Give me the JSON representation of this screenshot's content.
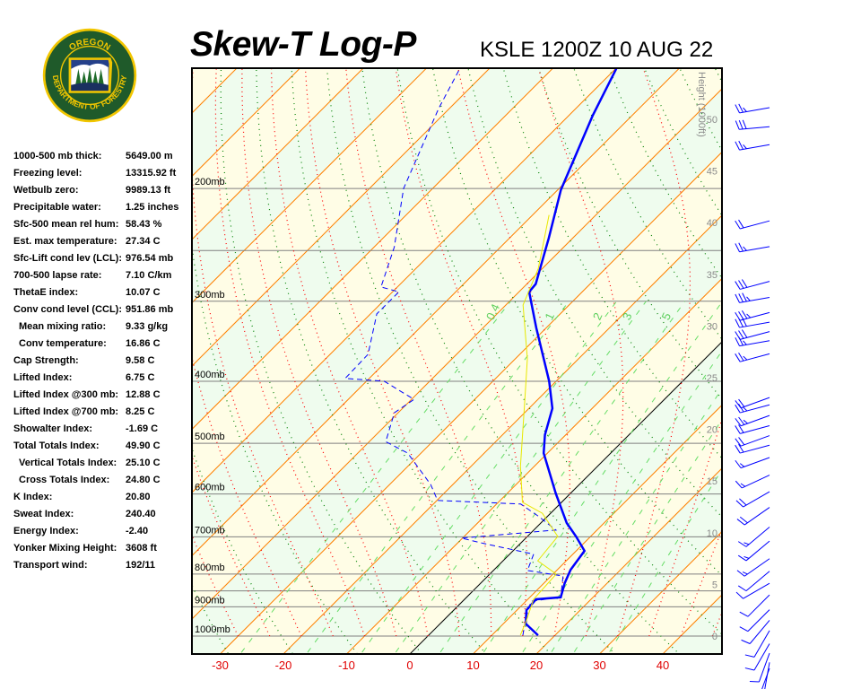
{
  "header": {
    "title": "Skew-T Log-P",
    "station": "KSLE 1200Z 10 AUG 22"
  },
  "logo": {
    "top_text": "OREGON",
    "bottom_text": "DEPARTMENT OF FORESTRY",
    "colors": {
      "green": "#1f5a2a",
      "gold": "#f2c600"
    }
  },
  "stats": [
    {
      "label": "1000-500 mb thick:",
      "value": "5649.00 m"
    },
    {
      "label": "Freezing level:",
      "value": "13315.92 ft"
    },
    {
      "label": "Wetbulb zero:",
      "value": "9989.13 ft"
    },
    {
      "label": "Precipitable water:",
      "value": "1.25 inches"
    },
    {
      "label": "Sfc-500 mean rel hum:",
      "value": "58.43 %"
    },
    {
      "label": "Est. max temperature:",
      "value": "27.34 C"
    },
    {
      "label": "Sfc-Lift cond lev (LCL):",
      "value": "976.54 mb"
    },
    {
      "label": "700-500 lapse rate:",
      "value": "7.10 C/km"
    },
    {
      "label": "ThetaE index:",
      "value": "10.07 C"
    },
    {
      "label": "Conv cond level (CCL):",
      "value": "951.86 mb"
    },
    {
      "label": "Mean mixing ratio:",
      "value": "9.33 g/kg",
      "indent": true
    },
    {
      "label": "Conv temperature:",
      "value": "16.86 C",
      "indent": true
    },
    {
      "label": "Cap Strength:",
      "value": "9.58 C"
    },
    {
      "label": "Lifted Index:",
      "value": "6.75 C"
    },
    {
      "label": "Lifted Index @300 mb:",
      "value": "12.88 C"
    },
    {
      "label": "Lifted Index @700 mb:",
      "value": "8.25 C"
    },
    {
      "label": "Showalter Index:",
      "value": "-1.69 C"
    },
    {
      "label": "Total Totals Index:",
      "value": "49.90 C"
    },
    {
      "label": "Vertical Totals Index:",
      "value": "25.10 C",
      "indent": true
    },
    {
      "label": "Cross Totals Index:",
      "value": "24.80 C",
      "indent": true
    },
    {
      "label": "K Index:",
      "value": "20.80"
    },
    {
      "label": "Sweat Index:",
      "value": "240.40"
    },
    {
      "label": "Energy Index:",
      "value": "-2.40"
    },
    {
      "label": "Yonker Mixing Height:",
      "value": "3608 ft"
    },
    {
      "label": "Transport wind:",
      "value": "192/11"
    }
  ],
  "chart_data": {
    "type": "line",
    "title": "Skew-T Log-P",
    "x_ticks": [
      "-30",
      "-20",
      "-10",
      "0",
      "10",
      "20",
      "30",
      "40"
    ],
    "x_tick_values": [
      -30,
      -20,
      -10,
      0,
      10,
      20,
      30,
      40
    ],
    "pressure_labels": [
      "200mb",
      "300mb",
      "400mb",
      "500mb",
      "600mb",
      "700mb",
      "800mb",
      "900mb",
      "1000mb"
    ],
    "pressure_values": [
      200,
      300,
      400,
      500,
      600,
      700,
      800,
      900,
      1000
    ],
    "height_axis_label": "Height (1000ft)",
    "height_ticks": [
      "0",
      "5",
      "10",
      "15",
      "20",
      "25",
      "30",
      "35",
      "40",
      "45",
      "50"
    ],
    "mixing_ratio_labels": [
      "0.4",
      "1",
      "2",
      "3",
      "5"
    ],
    "mixing_ratio_values": [
      0.4,
      1,
      2,
      3,
      5,
      8,
      12,
      16,
      20,
      28
    ],
    "pressure_range_mb": [
      1000,
      130
    ],
    "y_scale": "log",
    "colors": {
      "temperature": "#0000ff",
      "dewpoint": "#0000ff",
      "wetbulb": "#e8e800",
      "isotherm": "#ff8000",
      "dry_adiabat": "#008000",
      "moist_adiabat": "#ff0000",
      "mixing_ratio": "#66dd66",
      "isobar": "#808080",
      "band_a": "#fffde6",
      "band_b": "#effcee"
    },
    "series": [
      {
        "role": "temperature",
        "style": "solid-thick",
        "points": [
          [
            997,
            17.3
          ],
          [
            956,
            13.5
          ],
          [
            911,
            11.5
          ],
          [
            876,
            11.3
          ],
          [
            870,
            14.9
          ],
          [
            827,
            13.3
          ],
          [
            788,
            12.1
          ],
          [
            736,
            11.3
          ],
          [
            699,
            7.7
          ],
          [
            666,
            4.1
          ],
          [
            599,
            -2.3
          ],
          [
            518,
            -10.6
          ],
          [
            485,
            -13.3
          ],
          [
            441,
            -16.3
          ],
          [
            400,
            -21.1
          ],
          [
            330,
            -31.6
          ],
          [
            290,
            -38.4
          ],
          [
            282,
            -38.6
          ],
          [
            239,
            -43.8
          ],
          [
            201,
            -49.5
          ],
          [
            154,
            -56.2
          ],
          [
            130,
            -59.9
          ]
        ]
      },
      {
        "role": "dewpoint",
        "style": "dashed",
        "points": [
          [
            997,
            14.9
          ],
          [
            941,
            12.8
          ],
          [
            882,
            10.8
          ],
          [
            870,
            14.9
          ],
          [
            806,
            11.9
          ],
          [
            790,
            5.4
          ],
          [
            745,
            3.8
          ],
          [
            717,
            -5.7
          ],
          [
            703,
            -10.2
          ],
          [
            683,
            3.5
          ],
          [
            649,
            -1.6
          ],
          [
            622,
            -6.2
          ],
          [
            614,
            -19.9
          ],
          [
            580,
            -23.5
          ],
          [
            518,
            -32.1
          ],
          [
            497,
            -37.4
          ],
          [
            448,
            -40.6
          ],
          [
            427,
            -39.6
          ],
          [
            400,
            -47.2
          ],
          [
            396,
            -53.8
          ],
          [
            363,
            -54.0
          ],
          [
            314,
            -59.0
          ],
          [
            290,
            -59.0
          ],
          [
            285,
            -62.6
          ],
          [
            247,
            -66.8
          ],
          [
            200,
            -74.6
          ],
          [
            150,
            -81.7
          ],
          [
            131,
            -84.5
          ]
        ]
      },
      {
        "role": "wetbulb",
        "style": "thin",
        "points": [
          [
            997,
            14.5
          ],
          [
            941,
            13.0
          ],
          [
            876,
            10.9
          ],
          [
            800,
            10.5
          ],
          [
            763,
            5.5
          ],
          [
            699,
            4.8
          ],
          [
            643,
            -1.3
          ],
          [
            618,
            -6.2
          ],
          [
            543,
            -12.2
          ],
          [
            434,
            -21.4
          ],
          [
            369,
            -28.1
          ],
          [
            304,
            -37.3
          ],
          [
            267,
            -40.6
          ],
          [
            220,
            -47.4
          ]
        ]
      }
    ],
    "winds": [
      [
        150,
        260,
        25
      ],
      [
        160,
        265,
        30
      ],
      [
        170,
        260,
        25
      ],
      [
        220,
        255,
        20
      ],
      [
        240,
        260,
        25
      ],
      [
        270,
        255,
        30
      ],
      [
        285,
        260,
        35
      ],
      [
        300,
        255,
        35
      ],
      [
        310,
        260,
        30
      ],
      [
        320,
        255,
        30
      ],
      [
        330,
        260,
        25
      ],
      [
        345,
        255,
        25
      ],
      [
        400,
        250,
        20
      ],
      [
        410,
        255,
        25
      ],
      [
        425,
        250,
        25
      ],
      [
        440,
        255,
        20
      ],
      [
        455,
        250,
        20
      ],
      [
        470,
        255,
        20
      ],
      [
        490,
        250,
        15
      ],
      [
        520,
        245,
        15
      ],
      [
        550,
        240,
        20
      ],
      [
        580,
        235,
        20
      ],
      [
        620,
        230,
        15
      ],
      [
        650,
        230,
        15
      ],
      [
        690,
        235,
        15
      ],
      [
        720,
        230,
        10
      ],
      [
        750,
        240,
        10
      ],
      [
        780,
        225,
        10
      ],
      [
        820,
        225,
        10
      ],
      [
        850,
        220,
        10
      ],
      [
        880,
        210,
        10
      ],
      [
        920,
        210,
        10
      ],
      [
        950,
        200,
        10
      ],
      [
        980,
        190,
        10
      ],
      [
        1000,
        200,
        5
      ]
    ]
  }
}
